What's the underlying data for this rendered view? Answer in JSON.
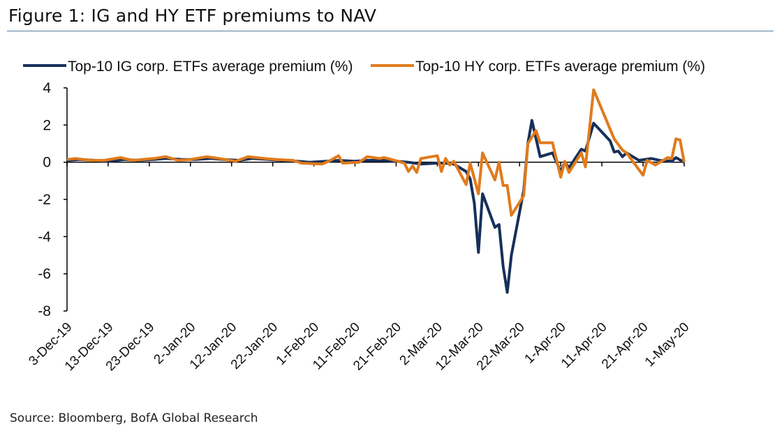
{
  "title": "Figure 1: IG and HY ETF premiums to NAV",
  "source": "Source: Bloomberg, BofA Global Research",
  "chart_data": {
    "type": "line",
    "title": "Figure 1: IG and HY ETF premiums to NAV",
    "xlabel": "",
    "ylabel": "",
    "ylim": [
      -8,
      4
    ],
    "yticks": [
      "4",
      "2",
      "0",
      "-2",
      "-4",
      "-6",
      "-8"
    ],
    "xlim": [
      "2019-12-03",
      "2020-05-01"
    ],
    "xticks": [
      {
        "date": "2019-12-03",
        "label": "3-Dec-19"
      },
      {
        "date": "2019-12-13",
        "label": "13-Dec-19"
      },
      {
        "date": "2019-12-23",
        "label": "23-Dec-19"
      },
      {
        "date": "2020-01-02",
        "label": "2-Jan-20"
      },
      {
        "date": "2020-01-12",
        "label": "12-Jan-20"
      },
      {
        "date": "2020-01-22",
        "label": "22-Jan-20"
      },
      {
        "date": "2020-02-01",
        "label": "1-Feb-20"
      },
      {
        "date": "2020-02-11",
        "label": "11-Feb-20"
      },
      {
        "date": "2020-02-21",
        "label": "21-Feb-20"
      },
      {
        "date": "2020-03-02",
        "label": "2-Mar-20"
      },
      {
        "date": "2020-03-12",
        "label": "12-Mar-20"
      },
      {
        "date": "2020-03-22",
        "label": "22-Mar-20"
      },
      {
        "date": "2020-04-01",
        "label": "1-Apr-20"
      },
      {
        "date": "2020-04-11",
        "label": "11-Apr-20"
      },
      {
        "date": "2020-04-21",
        "label": "21-Apr-20"
      },
      {
        "date": "2020-05-01",
        "label": "1-May-20"
      }
    ],
    "grid": false,
    "legend": "top",
    "series": [
      {
        "name": "Top-10 IG corp. ETFs average premium (%)",
        "color": "#17305a",
        "points": [
          [
            "2019-12-03",
            0.1
          ],
          [
            "2019-12-06",
            0.15
          ],
          [
            "2019-12-10",
            0.1
          ],
          [
            "2019-12-13",
            0.05
          ],
          [
            "2019-12-17",
            0.15
          ],
          [
            "2019-12-20",
            0.1
          ],
          [
            "2019-12-24",
            0.15
          ],
          [
            "2019-12-27",
            0.2
          ],
          [
            "2019-12-31",
            0.15
          ],
          [
            "2020-01-03",
            0.15
          ],
          [
            "2020-01-07",
            0.2
          ],
          [
            "2020-01-10",
            0.15
          ],
          [
            "2020-01-14",
            0.1
          ],
          [
            "2020-01-17",
            0.2
          ],
          [
            "2020-01-21",
            0.15
          ],
          [
            "2020-01-24",
            0.1
          ],
          [
            "2020-01-28",
            0.05
          ],
          [
            "2020-01-31",
            0.0
          ],
          [
            "2020-02-04",
            0.05
          ],
          [
            "2020-02-07",
            0.1
          ],
          [
            "2020-02-11",
            0.05
          ],
          [
            "2020-02-14",
            0.1
          ],
          [
            "2020-02-18",
            0.1
          ],
          [
            "2020-02-21",
            0.05
          ],
          [
            "2020-02-24",
            0.0
          ],
          [
            "2020-02-27",
            -0.1
          ],
          [
            "2020-03-02",
            -0.05
          ],
          [
            "2020-03-04",
            -0.05
          ],
          [
            "2020-03-06",
            -0.1
          ],
          [
            "2020-03-09",
            -0.5
          ],
          [
            "2020-03-10",
            -0.9
          ],
          [
            "2020-03-11",
            -2.2
          ],
          [
            "2020-03-12",
            -4.85
          ],
          [
            "2020-03-13",
            -1.7
          ],
          [
            "2020-03-16",
            -3.5
          ],
          [
            "2020-03-17",
            -3.35
          ],
          [
            "2020-03-18",
            -5.6
          ],
          [
            "2020-03-19",
            -7.0
          ],
          [
            "2020-03-20",
            -5.0
          ],
          [
            "2020-03-23",
            -1.5
          ],
          [
            "2020-03-24",
            1.0
          ],
          [
            "2020-03-25",
            2.25
          ],
          [
            "2020-03-27",
            0.3
          ],
          [
            "2020-03-30",
            0.5
          ],
          [
            "2020-04-01",
            -0.5
          ],
          [
            "2020-04-02",
            0.0
          ],
          [
            "2020-04-03",
            -0.3
          ],
          [
            "2020-04-06",
            0.7
          ],
          [
            "2020-04-07",
            0.6
          ],
          [
            "2020-04-09",
            2.1
          ],
          [
            "2020-04-13",
            1.15
          ],
          [
            "2020-04-14",
            0.55
          ],
          [
            "2020-04-15",
            0.6
          ],
          [
            "2020-04-16",
            0.3
          ],
          [
            "2020-04-17",
            0.5
          ],
          [
            "2020-04-20",
            0.1
          ],
          [
            "2020-04-23",
            0.2
          ],
          [
            "2020-04-25",
            0.1
          ],
          [
            "2020-04-28",
            0.05
          ],
          [
            "2020-04-29",
            0.25
          ],
          [
            "2020-05-01",
            0.0
          ]
        ]
      },
      {
        "name": "Top-10 HY corp. ETFs average premium (%)",
        "color": "#e07b1c",
        "points": [
          [
            "2019-12-03",
            0.15
          ],
          [
            "2019-12-05",
            0.2
          ],
          [
            "2019-12-09",
            0.1
          ],
          [
            "2019-12-12",
            0.1
          ],
          [
            "2019-12-16",
            0.25
          ],
          [
            "2019-12-19",
            0.1
          ],
          [
            "2019-12-24",
            0.2
          ],
          [
            "2019-12-27",
            0.3
          ],
          [
            "2019-12-30",
            0.1
          ],
          [
            "2020-01-02",
            0.15
          ],
          [
            "2020-01-06",
            0.3
          ],
          [
            "2020-01-09",
            0.2
          ],
          [
            "2020-01-13",
            0.05
          ],
          [
            "2020-01-16",
            0.3
          ],
          [
            "2020-01-20",
            0.2
          ],
          [
            "2020-01-23",
            0.15
          ],
          [
            "2020-01-27",
            0.1
          ],
          [
            "2020-01-29",
            -0.05
          ],
          [
            "2020-02-03",
            -0.1
          ],
          [
            "2020-02-05",
            0.1
          ],
          [
            "2020-02-07",
            0.35
          ],
          [
            "2020-02-08",
            -0.05
          ],
          [
            "2020-02-12",
            0.0
          ],
          [
            "2020-02-14",
            0.3
          ],
          [
            "2020-02-17",
            0.2
          ],
          [
            "2020-02-18",
            0.25
          ],
          [
            "2020-02-19",
            0.2
          ],
          [
            "2020-02-23",
            -0.05
          ],
          [
            "2020-02-24",
            -0.5
          ],
          [
            "2020-02-25",
            -0.2
          ],
          [
            "2020-02-26",
            -0.55
          ],
          [
            "2020-02-27",
            0.2
          ],
          [
            "2020-03-02",
            0.35
          ],
          [
            "2020-03-03",
            -0.5
          ],
          [
            "2020-03-04",
            0.2
          ],
          [
            "2020-03-05",
            -0.15
          ],
          [
            "2020-03-06",
            0.05
          ],
          [
            "2020-03-09",
            -1.2
          ],
          [
            "2020-03-10",
            -0.05
          ],
          [
            "2020-03-12",
            -1.7
          ],
          [
            "2020-03-13",
            0.5
          ],
          [
            "2020-03-16",
            -0.95
          ],
          [
            "2020-03-17",
            0.0
          ],
          [
            "2020-03-18",
            -1.25
          ],
          [
            "2020-03-19",
            -1.25
          ],
          [
            "2020-03-20",
            -2.85
          ],
          [
            "2020-03-23",
            -1.8
          ],
          [
            "2020-03-24",
            1.0
          ],
          [
            "2020-03-26",
            1.7
          ],
          [
            "2020-03-27",
            1.05
          ],
          [
            "2020-03-30",
            1.05
          ],
          [
            "2020-04-01",
            -0.8
          ],
          [
            "2020-04-02",
            0.05
          ],
          [
            "2020-04-03",
            -0.55
          ],
          [
            "2020-04-06",
            0.5
          ],
          [
            "2020-04-07",
            -0.25
          ],
          [
            "2020-04-09",
            3.9
          ],
          [
            "2020-04-14",
            1.25
          ],
          [
            "2020-04-16",
            0.65
          ],
          [
            "2020-04-17",
            0.5
          ],
          [
            "2020-04-21",
            -0.7
          ],
          [
            "2020-04-22",
            0.1
          ],
          [
            "2020-04-24",
            -0.15
          ],
          [
            "2020-04-27",
            0.25
          ],
          [
            "2020-04-28",
            0.2
          ],
          [
            "2020-04-29",
            1.25
          ],
          [
            "2020-04-30",
            1.2
          ],
          [
            "2020-05-01",
            0.0
          ]
        ]
      }
    ]
  }
}
